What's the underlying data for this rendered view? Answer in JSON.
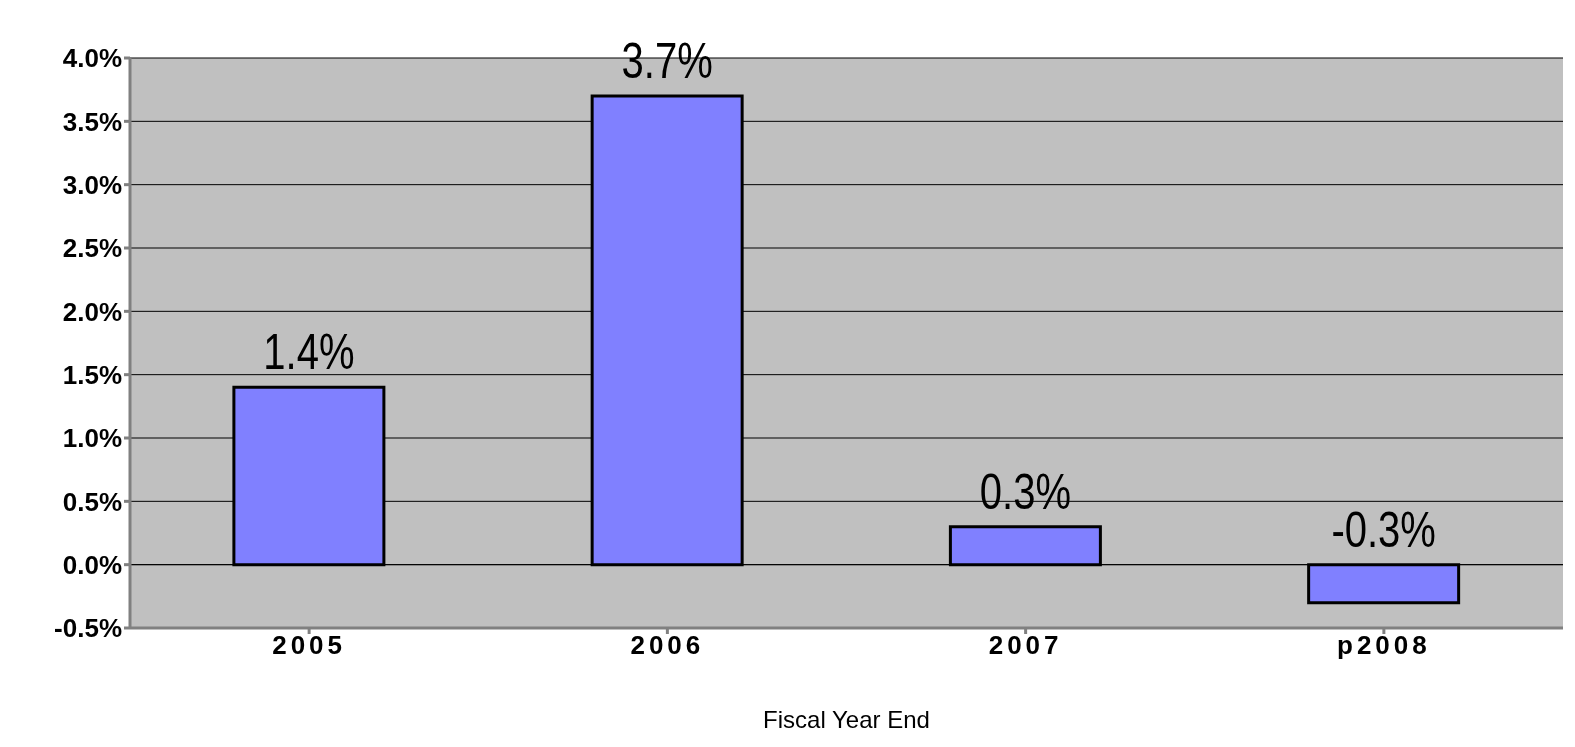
{
  "chart_data": {
    "type": "bar",
    "xlabel": "Fiscal Year End",
    "categories": [
      "2005",
      "2006",
      "2007",
      "p2008"
    ],
    "values": [
      1.4,
      3.7,
      0.3,
      -0.3
    ],
    "color": "#8080ff",
    "value_labels": [
      "1.4%",
      "3.7%",
      "0.3%",
      "-0.3%"
    ],
    "ylim": [
      -0.5,
      4.0
    ],
    "yticks": [
      {
        "value": -0.5,
        "label": "-0.5%"
      },
      {
        "value": 0,
        "label": "0.0%"
      },
      {
        "value": 0.5,
        "label": "0.5%"
      },
      {
        "value": 1,
        "label": "1.0%"
      },
      {
        "value": 1.5,
        "label": "1.5%"
      },
      {
        "value": 2,
        "label": "2.0%"
      },
      {
        "value": 2.5,
        "label": "2.5%"
      },
      {
        "value": 3,
        "label": "3.0%"
      },
      {
        "value": 3.5,
        "label": "3.5%"
      },
      {
        "value": 4,
        "label": "4.0%"
      }
    ],
    "grid": "y"
  }
}
